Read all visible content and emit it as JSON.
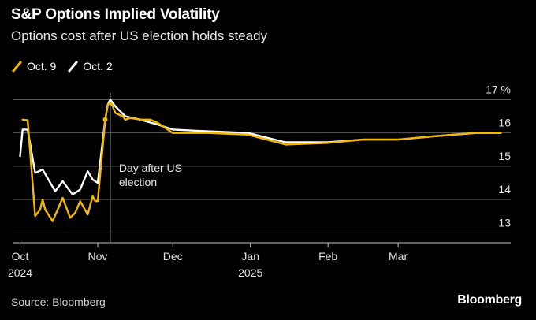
{
  "header": {
    "title": "S&P Options Implied Volatility",
    "subtitle": "Options cost after US election holds steady"
  },
  "legend": [
    {
      "label": "Oct. 9",
      "color": "#f5b800"
    },
    {
      "label": "Oct. 2",
      "color": "#ffffff"
    }
  ],
  "footer": {
    "source": "Source: Bloomberg",
    "brand": "Bloomberg"
  },
  "chart_data": {
    "type": "line",
    "title": "S&P Options Implied Volatility",
    "subtitle": "Options cost after US election holds steady",
    "ylim": [
      12.7,
      17.2
    ],
    "y_ticks": [
      13,
      14,
      15,
      16,
      17
    ],
    "y_tick_labels": [
      "13",
      "14",
      "15",
      "16",
      "17 %"
    ],
    "y_unit": "%",
    "x_ticks": [
      {
        "date": "2024-10-01",
        "label": "Oct",
        "sublabel": "2024"
      },
      {
        "date": "2024-11-01",
        "label": "Nov",
        "sublabel": ""
      },
      {
        "date": "2024-12-01",
        "label": "Dec",
        "sublabel": ""
      },
      {
        "date": "2025-01-01",
        "label": "Jan",
        "sublabel": "2025"
      },
      {
        "date": "2025-02-01",
        "label": "Feb",
        "sublabel": ""
      },
      {
        "date": "2025-03-01",
        "label": "Mar",
        "sublabel": ""
      }
    ],
    "xlim": [
      "2024-09-28",
      "2025-04-15"
    ],
    "grid": true,
    "legend_position": "top-left",
    "annotation": {
      "date": "2024-11-06",
      "lines": [
        "Day after US",
        "election"
      ]
    },
    "series": [
      {
        "name": "Oct. 9",
        "color": "#f5b800",
        "points": [
          [
            "2024-10-02",
            16.4
          ],
          [
            "2024-10-04",
            16.38
          ],
          [
            "2024-10-07",
            13.5
          ],
          [
            "2024-10-09",
            13.7
          ],
          [
            "2024-10-10",
            14.0
          ],
          [
            "2024-10-11",
            13.7
          ],
          [
            "2024-10-14",
            13.35
          ],
          [
            "2024-10-16",
            13.7
          ],
          [
            "2024-10-18",
            14.05
          ],
          [
            "2024-10-21",
            13.45
          ],
          [
            "2024-10-23",
            13.6
          ],
          [
            "2024-10-25",
            13.95
          ],
          [
            "2024-10-28",
            13.55
          ],
          [
            "2024-10-30",
            14.1
          ],
          [
            "2024-10-31",
            13.95
          ],
          [
            "2024-11-01",
            13.95
          ],
          [
            "2024-11-04",
            16.4
          ],
          [
            "2024-11-05",
            16.85
          ],
          [
            "2024-11-06",
            16.9
          ],
          [
            "2024-11-07",
            16.8
          ],
          [
            "2024-11-08",
            16.6
          ],
          [
            "2024-11-11",
            16.5
          ],
          [
            "2024-11-12",
            16.4
          ],
          [
            "2024-11-14",
            16.45
          ],
          [
            "2024-11-18",
            16.4
          ],
          [
            "2024-11-22",
            16.4
          ],
          [
            "2024-11-25",
            16.3
          ],
          [
            "2024-12-01",
            16.0
          ],
          [
            "2024-12-15",
            16.0
          ],
          [
            "2024-12-31",
            15.95
          ],
          [
            "2025-01-15",
            15.65
          ],
          [
            "2025-02-01",
            15.7
          ],
          [
            "2025-02-15",
            15.8
          ],
          [
            "2025-03-01",
            15.8
          ],
          [
            "2025-03-15",
            15.9
          ],
          [
            "2025-04-01",
            16.0
          ],
          [
            "2025-04-11",
            16.0
          ]
        ]
      },
      {
        "name": "Oct. 2",
        "color": "#ffffff",
        "points": [
          [
            "2024-10-01",
            15.3
          ],
          [
            "2024-10-02",
            16.1
          ],
          [
            "2024-10-04",
            16.1
          ],
          [
            "2024-10-07",
            14.8
          ],
          [
            "2024-10-10",
            14.9
          ],
          [
            "2024-10-15",
            14.25
          ],
          [
            "2024-10-18",
            14.55
          ],
          [
            "2024-10-22",
            14.15
          ],
          [
            "2024-10-25",
            14.3
          ],
          [
            "2024-10-28",
            14.85
          ],
          [
            "2024-10-30",
            14.6
          ],
          [
            "2024-11-01",
            14.5
          ],
          [
            "2024-11-04",
            16.4
          ],
          [
            "2024-11-05",
            16.85
          ],
          [
            "2024-11-06",
            17.0
          ],
          [
            "2024-11-08",
            16.8
          ],
          [
            "2024-11-12",
            16.5
          ],
          [
            "2024-11-18",
            16.4
          ],
          [
            "2024-11-25",
            16.25
          ],
          [
            "2024-12-01",
            16.1
          ],
          [
            "2024-12-15",
            16.05
          ],
          [
            "2024-12-31",
            16.0
          ],
          [
            "2025-01-15",
            15.72
          ],
          [
            "2025-02-01",
            15.72
          ],
          [
            "2025-02-15",
            15.8
          ],
          [
            "2025-03-01",
            15.8
          ],
          [
            "2025-03-15",
            15.9
          ],
          [
            "2025-04-01",
            16.0
          ],
          [
            "2025-04-11",
            16.0
          ]
        ]
      }
    ]
  }
}
